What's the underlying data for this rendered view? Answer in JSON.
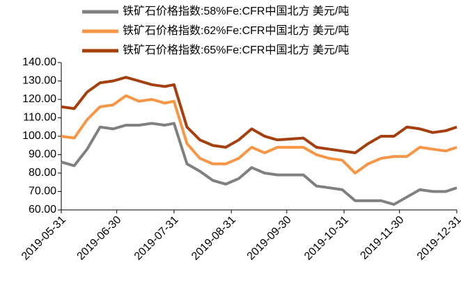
{
  "chart_data": {
    "type": "line",
    "x": [
      "2019-05-31",
      "2019-06-07",
      "2019-06-14",
      "2019-06-21",
      "2019-06-28",
      "2019-07-05",
      "2019-07-12",
      "2019-07-19",
      "2019-07-26",
      "2019-07-31",
      "2019-08-07",
      "2019-08-14",
      "2019-08-21",
      "2019-08-28",
      "2019-09-04",
      "2019-09-11",
      "2019-09-18",
      "2019-09-25",
      "2019-10-09",
      "2019-10-16",
      "2019-10-23",
      "2019-10-30",
      "2019-11-06",
      "2019-11-13",
      "2019-11-20",
      "2019-11-27",
      "2019-12-04",
      "2019-12-11",
      "2019-12-18",
      "2019-12-25",
      "2019-12-31"
    ],
    "series": [
      {
        "name": "铁矿石价格指数:58%Fe:CFR中国北方 美元/吨",
        "color": "#808080",
        "values": [
          86,
          84,
          93,
          105,
          104,
          106,
          106,
          107,
          106,
          107,
          85,
          81,
          76,
          74,
          77,
          83,
          80,
          79,
          79,
          73,
          72,
          71,
          65,
          65,
          65,
          63,
          67,
          71,
          70,
          70,
          72
        ]
      },
      {
        "name": "铁矿石价格指数:62%Fe:CFR中国北方 美元/吨",
        "color": "#f79646",
        "values": [
          100,
          99,
          109,
          116,
          117,
          122,
          119,
          120,
          118,
          119,
          96,
          88,
          85,
          85,
          88,
          94,
          91,
          94,
          94,
          90,
          88,
          87,
          80,
          85,
          88,
          89,
          89,
          94,
          93,
          92,
          94
        ]
      },
      {
        "name": "铁矿石价格指数:65%Fe:CFR中国北方 美元/吨",
        "color": "#a5400e",
        "values": [
          116,
          115,
          124,
          129,
          130,
          132,
          130,
          128,
          127,
          128,
          105,
          98,
          95,
          94,
          98,
          104,
          100,
          98,
          99,
          94,
          93,
          92,
          91,
          96,
          100,
          100,
          105,
          104,
          102,
          103,
          105
        ]
      }
    ],
    "xlim": [
      "2019-05-31",
      "2019-12-31"
    ],
    "xticks": [
      "2019-05-31",
      "2019-06-30",
      "2019-07-31",
      "2019-08-31",
      "2019-09-30",
      "2019-10-31",
      "2019-11-30",
      "2019-12-31"
    ],
    "ylim": [
      60,
      140
    ],
    "yticks": [
      {
        "value": 60,
        "label": "60.00"
      },
      {
        "value": 70,
        "label": "70.00"
      },
      {
        "value": 80,
        "label": "80.00"
      },
      {
        "value": 90,
        "label": "90.00"
      },
      {
        "value": 100,
        "label": "100.00"
      },
      {
        "value": 110,
        "label": "110.00"
      },
      {
        "value": 120,
        "label": "120.00"
      },
      {
        "value": 130,
        "label": "130.00"
      },
      {
        "value": 140,
        "label": "140.00"
      }
    ],
    "legend": "top"
  }
}
